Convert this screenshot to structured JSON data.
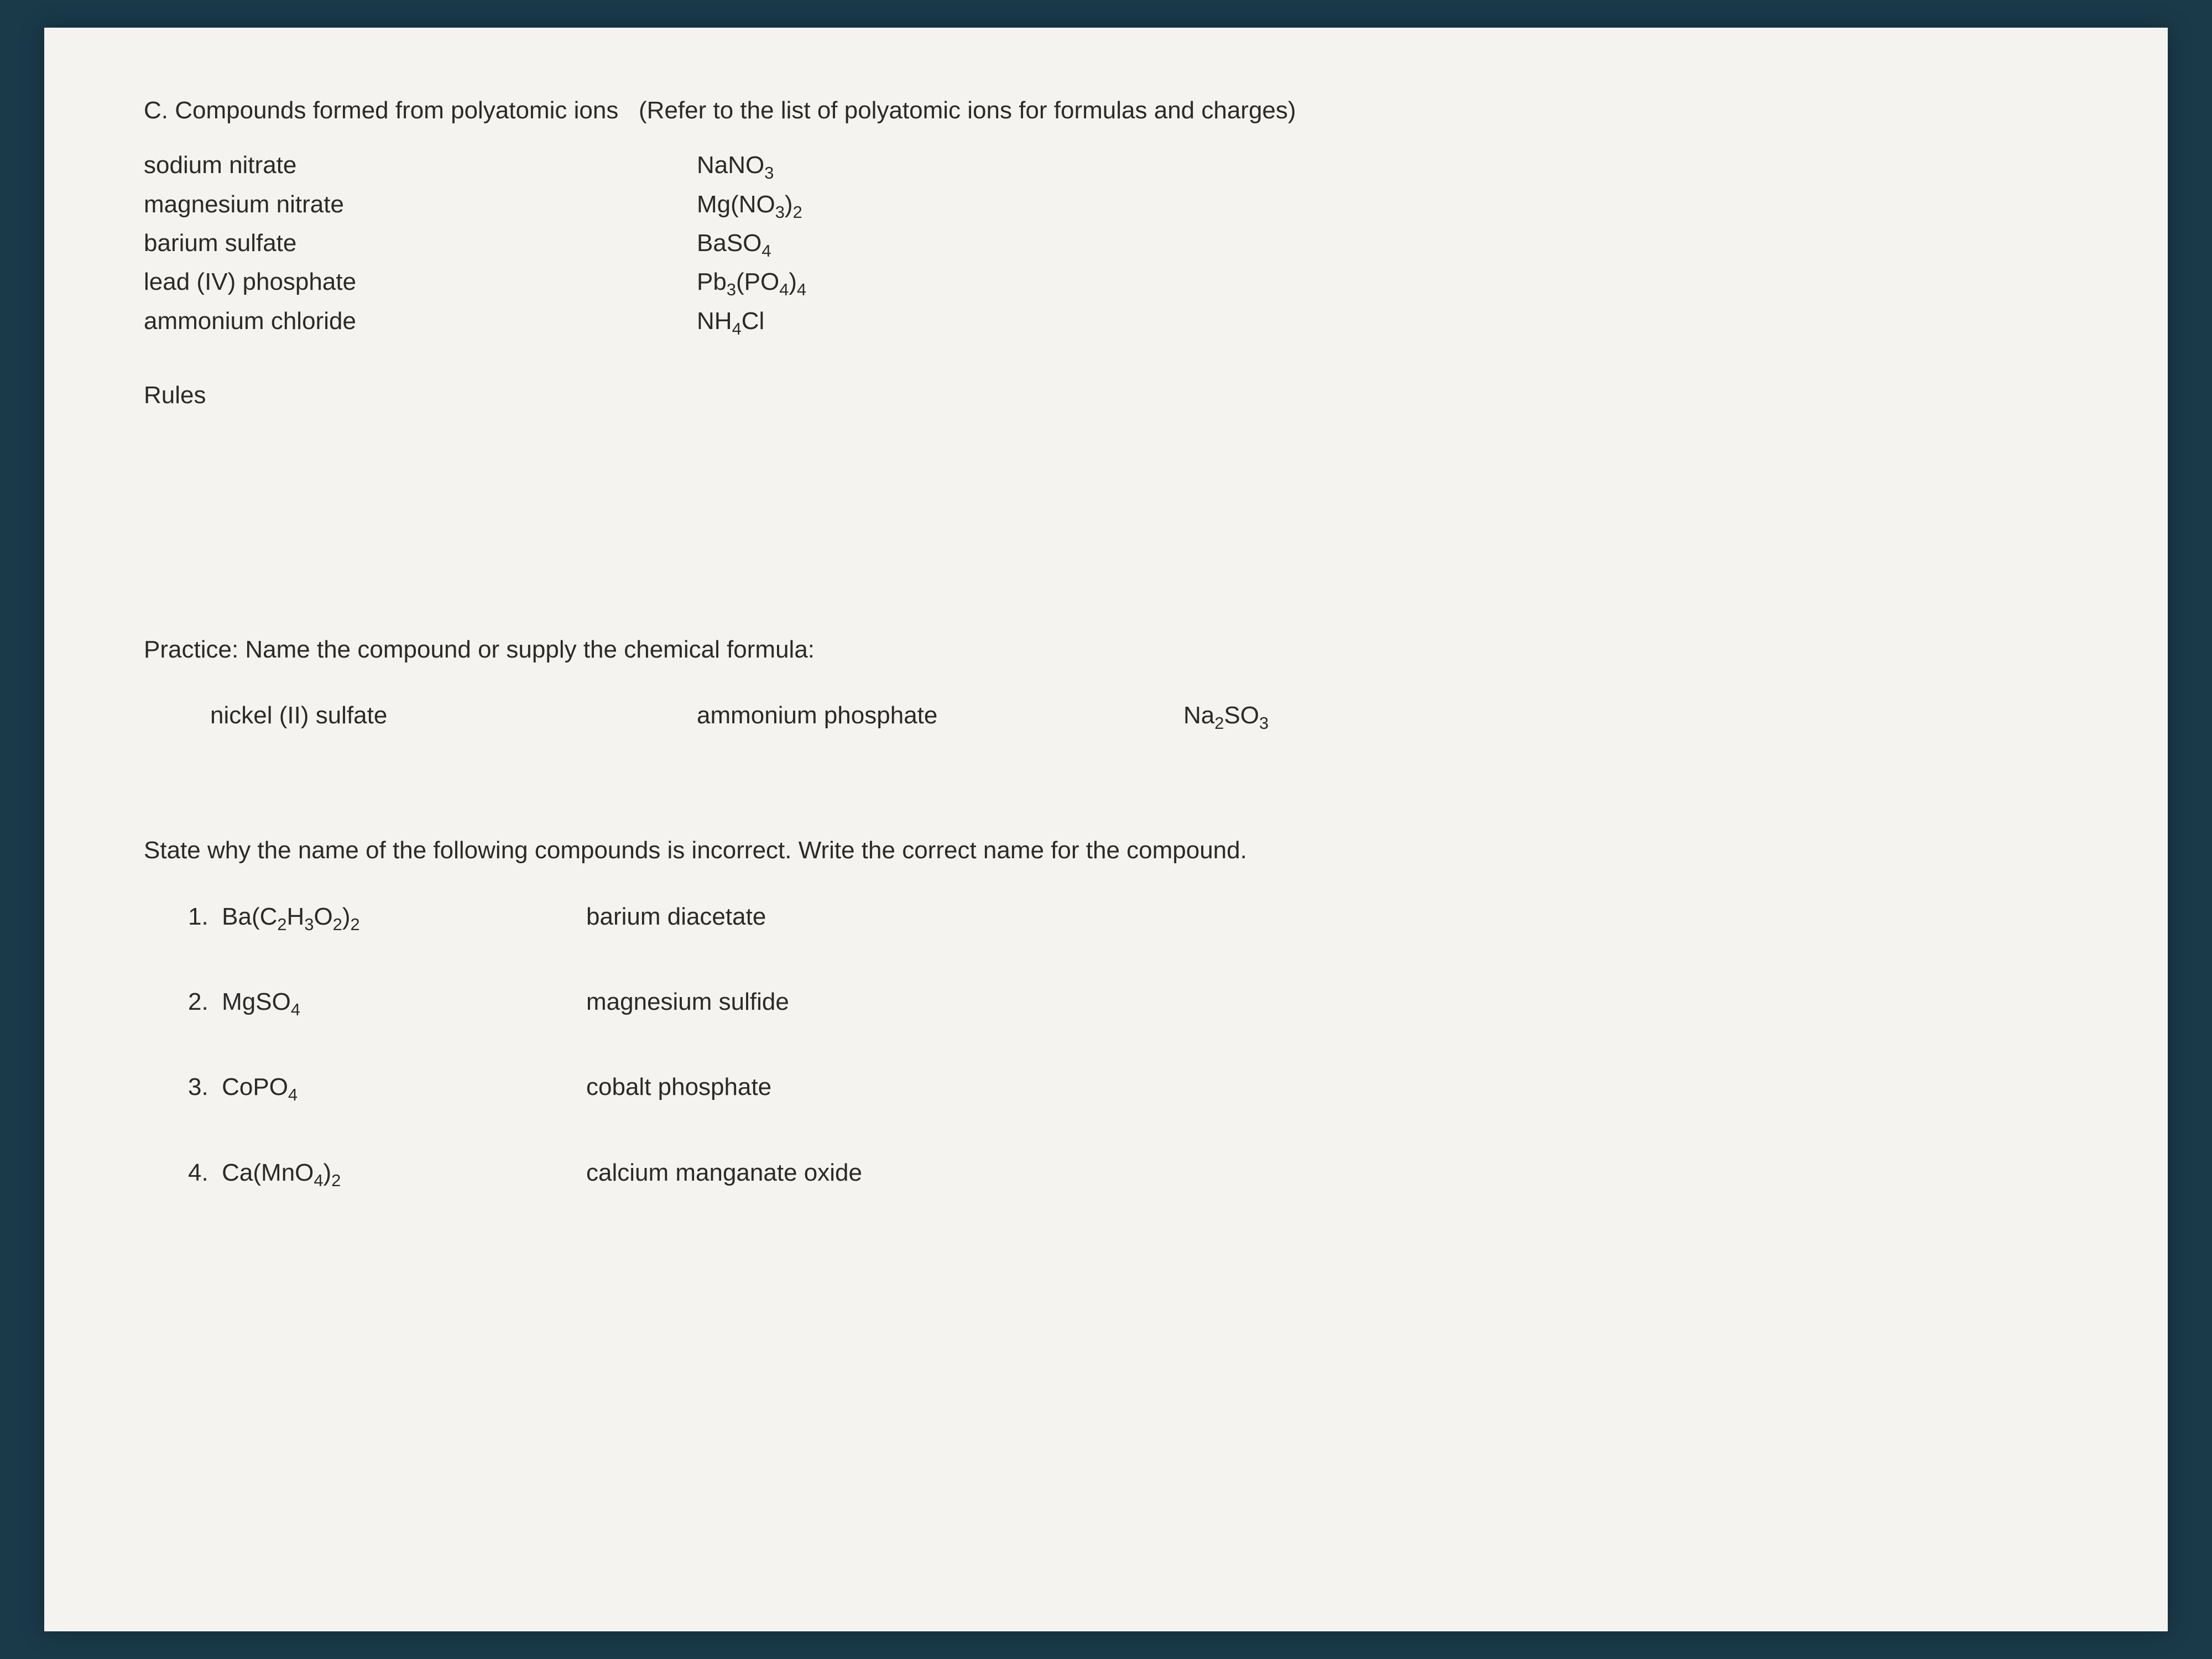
{
  "sectionC": {
    "title_prefix": "C.  Compounds formed from polyatomic ions",
    "title_suffix": "(Refer to the list of polyatomic ions for formulas and charges)",
    "examples": [
      {
        "name": "sodium nitrate",
        "formula_html": "NaNO<sub>3</sub>"
      },
      {
        "name": "magnesium nitrate",
        "formula_html": "Mg(NO<sub>3</sub>)<sub>2</sub>"
      },
      {
        "name": "barium sulfate",
        "formula_html": "BaSO<sub>4</sub>"
      },
      {
        "name": "lead (IV) phosphate",
        "formula_html": "Pb<sub>3</sub>(PO<sub>4</sub>)<sub>4</sub>"
      },
      {
        "name": "ammonium chloride",
        "formula_html": "NH<sub>4</sub>Cl"
      }
    ],
    "rules_label": "Rules"
  },
  "practice": {
    "prompt": "Practice:  Name the compound or supply the chemical formula:",
    "items": [
      {
        "text": "nickel (II) sulfate"
      },
      {
        "text": "ammonium phosphate"
      },
      {
        "text_html": "Na<sub>2</sub>SO<sub>3</sub>"
      }
    ]
  },
  "state": {
    "prompt": "State why the name of the following compounds is incorrect.  Write the correct name for the compound.",
    "questions": [
      {
        "num": "1.",
        "formula_html": "Ba(C<sub>2</sub>H<sub>3</sub>O<sub>2</sub>)<sub>2</sub>",
        "given": "barium diacetate"
      },
      {
        "num": "2.",
        "formula_html": "MgSO<sub>4</sub>",
        "given": "magnesium sulfide"
      },
      {
        "num": "3.",
        "formula_html": "CoPO<sub>4</sub>",
        "given": "cobalt phosphate"
      },
      {
        "num": "4.",
        "formula_html": "Ca(MnO<sub>4</sub>)<sub>2</sub>",
        "given": "calcium manganate oxide"
      }
    ]
  }
}
